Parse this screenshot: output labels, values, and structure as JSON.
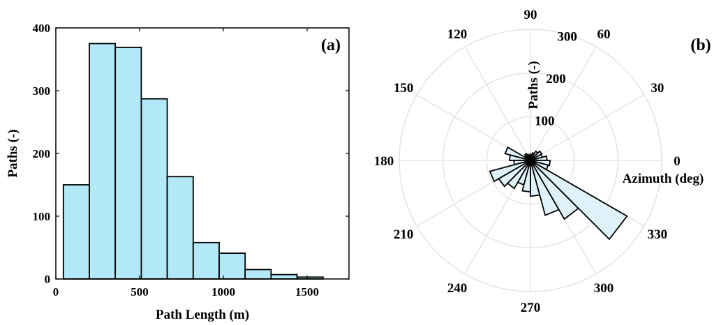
{
  "chart_data": [
    {
      "panel": "(a)",
      "type": "bar",
      "xlabel": "Path Length (m)",
      "ylabel": "Paths (-)",
      "xlim": [
        0,
        1750
      ],
      "ylim": [
        0,
        400
      ],
      "xticks": [
        "0",
        "500",
        "1000",
        "1500"
      ],
      "xtick_values": [
        0,
        500,
        1000,
        1500
      ],
      "yticks": [
        "0",
        "100",
        "200",
        "300",
        "400"
      ],
      "ytick_values": [
        0,
        100,
        200,
        300,
        400
      ],
      "bin_edges": [
        45,
        200,
        355,
        510,
        665,
        820,
        975,
        1130,
        1285,
        1440,
        1595
      ],
      "values": [
        150,
        375,
        369,
        287,
        163,
        58,
        41,
        15,
        7,
        3
      ],
      "bar_color": "#b3e8f8",
      "edge_color": "#000000",
      "grid": false
    },
    {
      "panel": "(b)",
      "type": "polar_histogram",
      "rlabel": "Paths (-)",
      "thetalabel": "Azimuth (deg)",
      "rlim": [
        0,
        300
      ],
      "rticks": [
        "100",
        "200",
        "300"
      ],
      "rtick_values": [
        100,
        200,
        300
      ],
      "theta_tick_values": [
        0,
        30,
        60,
        90,
        120,
        150,
        180,
        210,
        240,
        270,
        300,
        330
      ],
      "theta_ticks": [
        "0",
        "30",
        "60",
        "90",
        "120",
        "150",
        "180",
        "210",
        "240",
        "270",
        "300",
        "330"
      ],
      "bin_width_deg": 15,
      "bin_centers_deg": [
        7.5,
        22.5,
        37.5,
        52.5,
        67.5,
        82.5,
        97.5,
        112.5,
        127.5,
        142.5,
        157.5,
        172.5,
        187.5,
        202.5,
        217.5,
        232.5,
        247.5,
        262.5,
        277.5,
        292.5,
        307.5,
        322.5,
        337.5,
        352.5
      ],
      "values": [
        38,
        28,
        30,
        24,
        18,
        14,
        12,
        14,
        18,
        15,
        60,
        48,
        38,
        96,
        84,
        74,
        58,
        72,
        82,
        130,
        155,
        255,
        42,
        45
      ],
      "bar_color": "#dff2f9",
      "edge_color": "#000000",
      "grid": true
    }
  ]
}
